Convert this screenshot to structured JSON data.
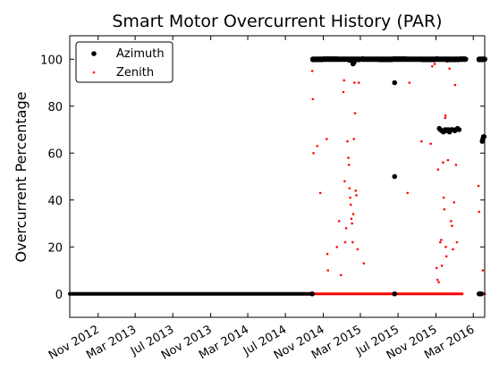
{
  "chart_data": {
    "type": "scatter",
    "title": "Smart Motor Overcurrent History (PAR)",
    "ylabel": "Overcurrent Percentage",
    "xlabel": "",
    "xlim": [
      "2012-08-01",
      "2016-04-07"
    ],
    "ylim": [
      -10,
      110
    ],
    "yticks": [
      0,
      20,
      40,
      60,
      80,
      100
    ],
    "xticks": [
      {
        "date": "2012-11-01",
        "label": "Nov 2012"
      },
      {
        "date": "2013-03-01",
        "label": "Mar 2013"
      },
      {
        "date": "2013-07-01",
        "label": "Jul 2013"
      },
      {
        "date": "2013-11-01",
        "label": "Nov 2013"
      },
      {
        "date": "2014-03-01",
        "label": "Mar 2014"
      },
      {
        "date": "2014-07-01",
        "label": "Jul 2014"
      },
      {
        "date": "2014-11-01",
        "label": "Nov 2014"
      },
      {
        "date": "2015-03-01",
        "label": "Mar 2015"
      },
      {
        "date": "2015-07-01",
        "label": "Jul 2015"
      },
      {
        "date": "2015-11-01",
        "label": "Nov 2015"
      },
      {
        "date": "2016-03-01",
        "label": "Mar 2016"
      }
    ],
    "grid": false,
    "legend_position": "top-left",
    "series": [
      {
        "name": "Azimuth",
        "color": "#000000",
        "marker": "large-dot",
        "baseline_segments": [
          {
            "start": "2012-08-01",
            "end": "2014-09-25",
            "y": 0
          }
        ],
        "bands": [
          {
            "start": "2014-09-28",
            "end": "2015-03-01",
            "y": 100
          },
          {
            "start": "2015-03-08",
            "end": "2015-11-05",
            "y": 100
          },
          {
            "start": "2015-11-08",
            "end": "2016-02-05",
            "y": 100
          },
          {
            "start": "2016-03-20",
            "end": "2016-04-07",
            "y": 100
          }
        ],
        "points": [
          [
            "2014-09-26",
            0
          ],
          [
            "2015-01-25",
            99.5
          ],
          [
            "2015-02-05",
            98
          ],
          [
            "2015-02-08",
            98.5
          ],
          [
            "2015-06-20",
            90
          ],
          [
            "2015-06-20",
            50
          ],
          [
            "2015-06-20",
            0
          ],
          [
            "2015-11-12",
            70.5
          ],
          [
            "2015-11-15",
            70
          ],
          [
            "2015-11-20",
            69.5
          ],
          [
            "2015-11-25",
            69
          ],
          [
            "2015-12-01",
            70
          ],
          [
            "2015-12-05",
            69.5
          ],
          [
            "2015-12-10",
            70
          ],
          [
            "2015-12-15",
            69
          ],
          [
            "2015-12-20",
            70
          ],
          [
            "2015-12-25",
            70
          ],
          [
            "2016-01-01",
            69.5
          ],
          [
            "2016-01-05",
            70
          ],
          [
            "2016-01-10",
            70.5
          ],
          [
            "2016-01-15",
            70
          ],
          [
            "2016-03-20",
            0
          ],
          [
            "2016-03-23",
            0
          ],
          [
            "2016-03-27",
            0
          ],
          [
            "2016-03-30",
            65
          ],
          [
            "2016-04-01",
            66
          ],
          [
            "2016-04-03",
            67
          ],
          [
            "2016-04-05",
            67
          ]
        ]
      },
      {
        "name": "Zenith",
        "color": "#ff0000",
        "marker": "small-dot",
        "baseline_segments": [
          {
            "start": "2012-08-01",
            "end": "2016-01-25",
            "y": 0
          },
          {
            "start": "2016-03-20",
            "end": "2016-04-07",
            "y": 0
          }
        ],
        "points": [
          [
            "2014-09-26",
            95
          ],
          [
            "2014-09-28",
            83
          ],
          [
            "2014-09-30",
            60
          ],
          [
            "2014-10-12",
            63
          ],
          [
            "2014-10-22",
            43
          ],
          [
            "2014-11-12",
            66
          ],
          [
            "2014-11-14",
            17
          ],
          [
            "2014-11-16",
            10
          ],
          [
            "2014-11-25",
            100
          ],
          [
            "2014-12-05",
            100
          ],
          [
            "2014-12-15",
            20
          ],
          [
            "2014-12-22",
            31
          ],
          [
            "2014-12-28",
            8
          ],
          [
            "2015-01-05",
            86
          ],
          [
            "2015-01-07",
            91
          ],
          [
            "2015-01-09",
            48
          ],
          [
            "2015-01-11",
            22
          ],
          [
            "2015-01-14",
            28
          ],
          [
            "2015-01-18",
            65
          ],
          [
            "2015-01-21",
            58
          ],
          [
            "2015-01-23",
            55
          ],
          [
            "2015-01-25",
            45
          ],
          [
            "2015-01-27",
            41
          ],
          [
            "2015-01-29",
            38
          ],
          [
            "2015-01-31",
            32
          ],
          [
            "2015-02-02",
            30
          ],
          [
            "2015-02-04",
            22
          ],
          [
            "2015-02-06",
            34
          ],
          [
            "2015-02-08",
            66
          ],
          [
            "2015-02-10",
            90
          ],
          [
            "2015-02-12",
            77
          ],
          [
            "2015-02-14",
            44
          ],
          [
            "2015-02-16",
            42
          ],
          [
            "2015-02-20",
            19
          ],
          [
            "2015-02-24",
            90
          ],
          [
            "2015-03-12",
            13
          ],
          [
            "2015-08-01",
            43
          ],
          [
            "2015-08-07",
            90
          ],
          [
            "2015-09-15",
            65
          ],
          [
            "2015-10-15",
            64
          ],
          [
            "2015-10-20",
            97
          ],
          [
            "2015-10-28",
            98
          ],
          [
            "2015-11-03",
            11
          ],
          [
            "2015-11-06",
            6
          ],
          [
            "2015-11-08",
            53
          ],
          [
            "2015-11-10",
            5
          ],
          [
            "2015-11-15",
            22
          ],
          [
            "2015-11-18",
            23
          ],
          [
            "2015-11-20",
            12
          ],
          [
            "2015-11-24",
            56
          ],
          [
            "2015-11-26",
            41
          ],
          [
            "2015-11-28",
            36
          ],
          [
            "2015-12-01",
            75
          ],
          [
            "2015-12-02",
            76
          ],
          [
            "2015-12-03",
            20
          ],
          [
            "2015-12-05",
            16
          ],
          [
            "2015-12-08",
            99
          ],
          [
            "2015-12-10",
            57
          ],
          [
            "2015-12-15",
            96
          ],
          [
            "2015-12-20",
            31
          ],
          [
            "2015-12-23",
            29
          ],
          [
            "2015-12-26",
            19
          ],
          [
            "2015-12-30",
            39
          ],
          [
            "2016-01-02",
            89
          ],
          [
            "2016-01-05",
            55
          ],
          [
            "2016-01-08",
            22
          ],
          [
            "2016-03-18",
            46
          ],
          [
            "2016-03-20",
            35
          ],
          [
            "2016-04-01",
            10
          ]
        ]
      }
    ]
  }
}
